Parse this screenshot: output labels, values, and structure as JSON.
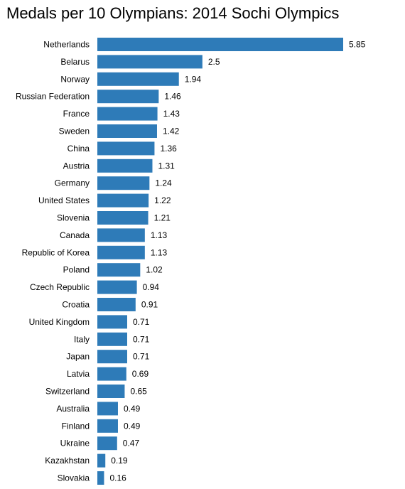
{
  "chart_data": {
    "type": "bar",
    "orientation": "horizontal",
    "title": "Medals per 10 Olympians: 2014 Sochi Olympics",
    "categories": [
      "Netherlands",
      "Belarus",
      "Norway",
      "Russian Federation",
      "France",
      "Sweden",
      "China",
      "Austria",
      "Germany",
      "United States",
      "Slovenia",
      "Canada",
      "Republic of Korea",
      "Poland",
      "Czech Republic",
      "Croatia",
      "United Kingdom",
      "Italy",
      "Japan",
      "Latvia",
      "Switzerland",
      "Australia",
      "Finland",
      "Ukraine",
      "Kazakhstan",
      "Slovakia"
    ],
    "values": [
      5.85,
      2.5,
      1.94,
      1.46,
      1.43,
      1.42,
      1.36,
      1.31,
      1.24,
      1.22,
      1.21,
      1.13,
      1.13,
      1.02,
      0.94,
      0.91,
      0.71,
      0.71,
      0.71,
      0.69,
      0.65,
      0.49,
      0.49,
      0.47,
      0.19,
      0.16
    ],
    "value_labels": [
      "5.85",
      "2.5",
      "1.94",
      "1.46",
      "1.43",
      "1.42",
      "1.36",
      "1.31",
      "1.24",
      "1.22",
      "1.21",
      "1.13",
      "1.13",
      "1.02",
      "0.94",
      "0.91",
      "0.71",
      "0.71",
      "0.71",
      "0.69",
      "0.65",
      "0.49",
      "0.49",
      "0.47",
      "0.19",
      "0.16"
    ],
    "xlim": [
      0,
      5.85
    ],
    "grid": false,
    "axes_visible": false,
    "bar_color": "#2e7bb8"
  }
}
